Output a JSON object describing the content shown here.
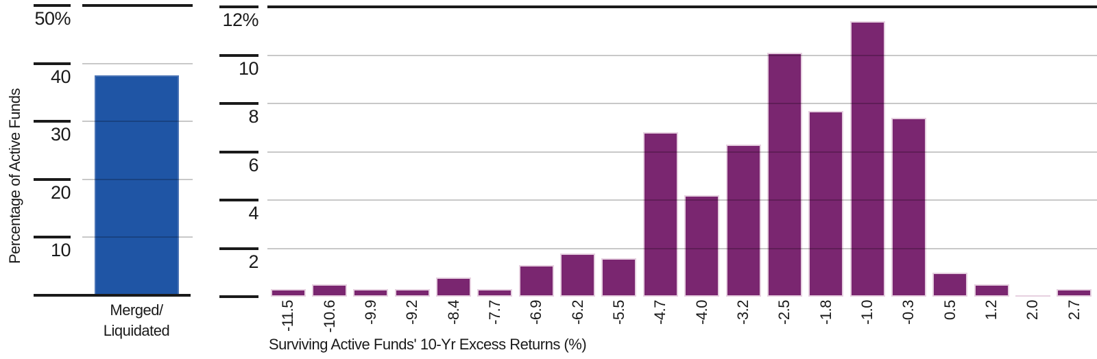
{
  "figure": {
    "background": "#ffffff"
  },
  "colors": {
    "blue_bar": "#1f55a5",
    "blue_bar_edge": "#4b74b5",
    "purple_bar": "#7a2670",
    "purple_bar_edge": "#e6d0e0",
    "gridline": "#c8c8c8",
    "axis_line": "#1a1a1a",
    "text": "#1a1a1a"
  },
  "chart_data": [
    {
      "type": "bar",
      "title": "",
      "categories": [
        "Merged/Liquidated"
      ],
      "category_display_lines": [
        [
          "Merged/",
          "Liquidated"
        ]
      ],
      "values": [
        38
      ],
      "xlabel": "",
      "ylabel": "Percentage of Active Funds",
      "ylim": [
        0,
        50
      ],
      "yticks": [
        0,
        10,
        20,
        30,
        40,
        50
      ],
      "ytick_labels": [
        "",
        "10",
        "20",
        "30",
        "40",
        "50%"
      ],
      "bar_color": "#1f55a5",
      "bar_edge_color": "#4b74b5",
      "grid": true,
      "legend": "none"
    },
    {
      "type": "bar",
      "title": "",
      "categories": [
        "-11.5",
        "-10.6",
        "-9.9",
        "-9.2",
        "-8.4",
        "-7.7",
        "-6.9",
        "-6.2",
        "-5.5",
        "-4.7",
        "-4.0",
        "-3.2",
        "-2.5",
        "-1.8",
        "-1.0",
        "-0.3",
        "0.5",
        "1.2",
        "2.0",
        "2.7"
      ],
      "values": [
        0.3,
        0.5,
        0.3,
        0.3,
        0.8,
        0.3,
        1.3,
        1.8,
        1.6,
        6.8,
        4.2,
        6.3,
        10.1,
        7.7,
        11.4,
        7.4,
        1.0,
        0.5,
        0.05,
        0.3
      ],
      "xlabel": "Surviving Active Funds' 10-Yr Excess Returns (%)",
      "ylabel": "",
      "ylim": [
        0,
        12
      ],
      "yticks": [
        0,
        2,
        4,
        6,
        8,
        10,
        12
      ],
      "ytick_labels": [
        "",
        "2",
        "4",
        "6",
        "8",
        "10",
        "12%"
      ],
      "bar_color": "#7a2670",
      "bar_edge_color": "#e6d0e0",
      "grid": true,
      "legend": "none"
    }
  ]
}
